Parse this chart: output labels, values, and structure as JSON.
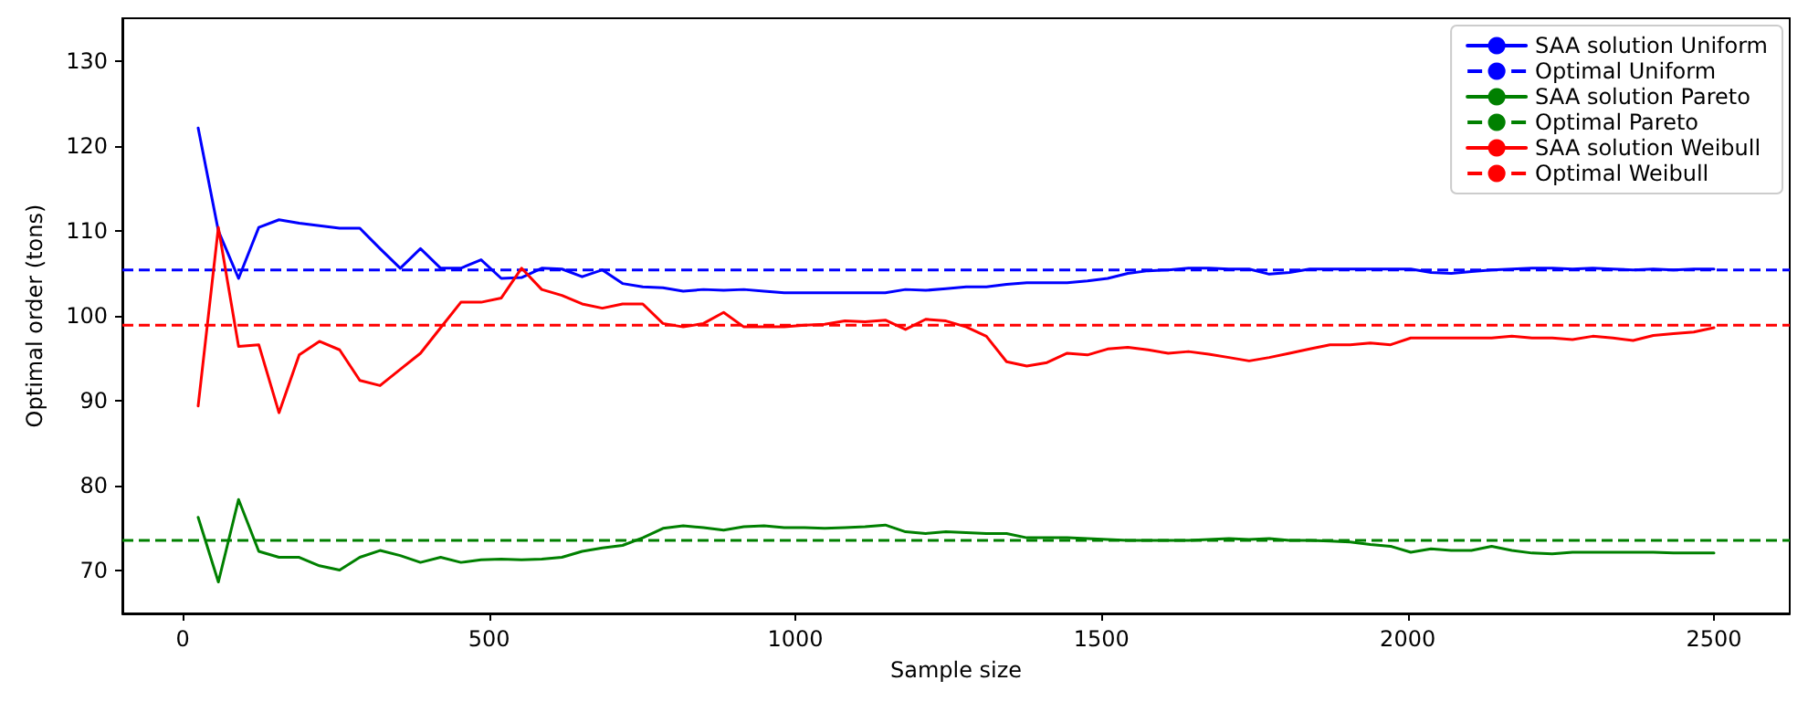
{
  "chart_data": {
    "type": "line",
    "xlabel": "Sample size",
    "ylabel": "Optimal order (tons)",
    "x": [
      25,
      58,
      91,
      124,
      157,
      190,
      223,
      256,
      289,
      322,
      355,
      388,
      421,
      454,
      487,
      520,
      553,
      586,
      619,
      652,
      685,
      718,
      751,
      784,
      817,
      850,
      883,
      916,
      949,
      982,
      1015,
      1048,
      1081,
      1114,
      1147,
      1180,
      1213,
      1246,
      1279,
      1312,
      1345,
      1378,
      1411,
      1444,
      1477,
      1510,
      1543,
      1576,
      1609,
      1642,
      1675,
      1708,
      1741,
      1774,
      1807,
      1840,
      1873,
      1906,
      1939,
      1972,
      2005,
      2038,
      2071,
      2104,
      2137,
      2170,
      2203,
      2236,
      2269,
      2302,
      2335,
      2368,
      2401,
      2434,
      2467,
      2500
    ],
    "series": [
      {
        "name": "SAA solution Uniform",
        "color": "#0000ff",
        "line_style": "solid",
        "values": [
          122.1,
          110,
          104.4,
          110.4,
          111.3,
          110.9,
          110.6,
          110.3,
          110.3,
          107.9,
          105.6,
          107.9,
          105.6,
          105.6,
          106.6,
          104.4,
          104.5,
          105.6,
          105.5,
          104.6,
          105.4,
          103.8,
          103.4,
          103.3,
          102.9,
          103.1,
          103.0,
          103.1,
          102.9,
          102.7,
          102.7,
          102.7,
          102.7,
          102.7,
          102.7,
          103.1,
          103.0,
          103.2,
          103.4,
          103.4,
          103.7,
          103.9,
          103.9,
          103.9,
          104.1,
          104.4,
          105.0,
          105.3,
          105.4,
          105.6,
          105.6,
          105.5,
          105.5,
          104.9,
          105.1,
          105.5,
          105.5,
          105.5,
          105.5,
          105.5,
          105.5,
          105.1,
          105.0,
          105.2,
          105.4,
          105.5,
          105.6,
          105.6,
          105.5,
          105.6,
          105.5,
          105.4,
          105.5,
          105.4,
          105.5,
          105.5
        ]
      },
      {
        "name": "SAA solution Pareto",
        "color": "#008000",
        "line_style": "solid",
        "values": [
          76.3,
          68.7,
          78.4,
          72.3,
          71.6,
          71.6,
          70.6,
          70.1,
          71.6,
          72.4,
          71.8,
          71.0,
          71.6,
          71.0,
          71.3,
          71.4,
          71.3,
          71.4,
          71.6,
          72.3,
          72.7,
          73.0,
          73.9,
          75.0,
          75.3,
          75.1,
          74.8,
          75.2,
          75.3,
          75.1,
          75.1,
          75.0,
          75.1,
          75.2,
          75.4,
          74.6,
          74.4,
          74.6,
          74.5,
          74.4,
          74.4,
          73.9,
          73.9,
          73.9,
          73.8,
          73.7,
          73.6,
          73.6,
          73.6,
          73.6,
          73.7,
          73.8,
          73.7,
          73.8,
          73.6,
          73.6,
          73.5,
          73.4,
          73.1,
          72.9,
          72.2,
          72.6,
          72.4,
          72.4,
          72.9,
          72.4,
          72.1,
          72.0,
          72.2,
          72.2,
          72.2,
          72.2,
          72.2,
          72.1,
          72.1,
          72.1
        ]
      },
      {
        "name": "SAA solution Weibull",
        "color": "#ff0000",
        "line_style": "solid",
        "values": [
          89.4,
          110.4,
          96.4,
          96.6,
          88.6,
          95.4,
          97.0,
          96.0,
          92.4,
          91.8,
          93.7,
          95.6,
          98.6,
          101.6,
          101.6,
          102.1,
          105.6,
          103.1,
          102.4,
          101.4,
          100.9,
          101.4,
          101.4,
          99.1,
          98.7,
          99.1,
          100.4,
          98.7,
          98.7,
          98.7,
          98.9,
          99.0,
          99.4,
          99.3,
          99.5,
          98.4,
          99.6,
          99.4,
          98.7,
          97.6,
          94.6,
          94.1,
          94.5,
          95.6,
          95.4,
          96.1,
          96.3,
          96.0,
          95.6,
          95.8,
          95.5,
          95.1,
          94.7,
          95.1,
          95.6,
          96.1,
          96.6,
          96.6,
          96.8,
          96.6,
          97.4,
          97.4,
          97.4,
          97.4,
          97.4,
          97.6,
          97.4,
          97.4,
          97.2,
          97.6,
          97.4,
          97.1,
          97.7,
          97.9,
          98.1,
          98.6
        ]
      }
    ],
    "ref_lines": [
      {
        "axis": "y",
        "value": 105.4,
        "label": "Optimal Uniform",
        "color": "#0000ff",
        "line_style": "dashed"
      },
      {
        "axis": "y",
        "value": 73.6,
        "label": "Optimal Pareto",
        "color": "#008000",
        "line_style": "dashed"
      },
      {
        "axis": "y",
        "value": 98.9,
        "label": "Optimal Weibull",
        "color": "#ff0000",
        "line_style": "dashed"
      }
    ],
    "xlim": [
      -98.75,
      2623.75
    ],
    "xticks": [
      0,
      500,
      {
        "value": 1000,
        "label": "1000"
      },
      {
        "value": 1500,
        "label": "1500"
      },
      {
        "value": 2000,
        "label": "2000"
      },
      {
        "value": 2500,
        "label": "2500"
      }
    ],
    "ylim": [
      65,
      135
    ],
    "yticks": [
      70,
      80,
      90,
      100,
      110,
      120,
      130
    ],
    "grid": false,
    "legend": "top right",
    "marker": "none"
  }
}
